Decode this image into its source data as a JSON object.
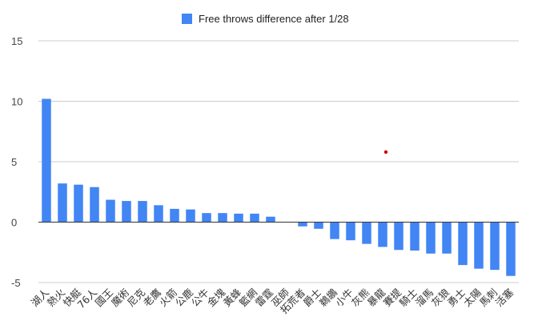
{
  "chart_data": {
    "type": "bar",
    "title": "",
    "xlabel": "",
    "ylabel": "",
    "ylim": [
      -5,
      15
    ],
    "yticks": [
      -5,
      0,
      5,
      10,
      15
    ],
    "grid": true,
    "legend_position": "top-center",
    "categories": [
      "湖人",
      "熱火",
      "快艇",
      "76人",
      "國王",
      "魔術",
      "尼克",
      "老鷹",
      "火箭",
      "公鹿",
      "公牛",
      "金塊",
      "黃蜂",
      "籃網",
      "雷霆",
      "巫師",
      "拓荒者",
      "爵士",
      "鵜鶘",
      "小牛",
      "灰熊",
      "暴龍",
      "賽提",
      "騎士",
      "溜馬",
      "灰狼",
      "勇士",
      "太陽",
      "馬刺",
      "活塞"
    ],
    "series": [
      {
        "name": "Free throws difference after 1/28",
        "color": "#4285f4",
        "values": [
          10.2,
          3.2,
          3.1,
          2.9,
          1.85,
          1.75,
          1.75,
          1.4,
          1.1,
          1.05,
          0.75,
          0.75,
          0.7,
          0.7,
          0.45,
          0.0,
          -0.35,
          -0.55,
          -1.4,
          -1.5,
          -1.8,
          -2.05,
          -2.3,
          -2.35,
          -2.6,
          -2.6,
          -3.55,
          -3.85,
          -3.95,
          -4.45
        ]
      }
    ],
    "annotation_point": {
      "x_index": 21.2,
      "y": 5.8,
      "color": "#cc0000"
    }
  },
  "colors": {
    "grid": "#cccccc",
    "zero_line": "#333333"
  }
}
